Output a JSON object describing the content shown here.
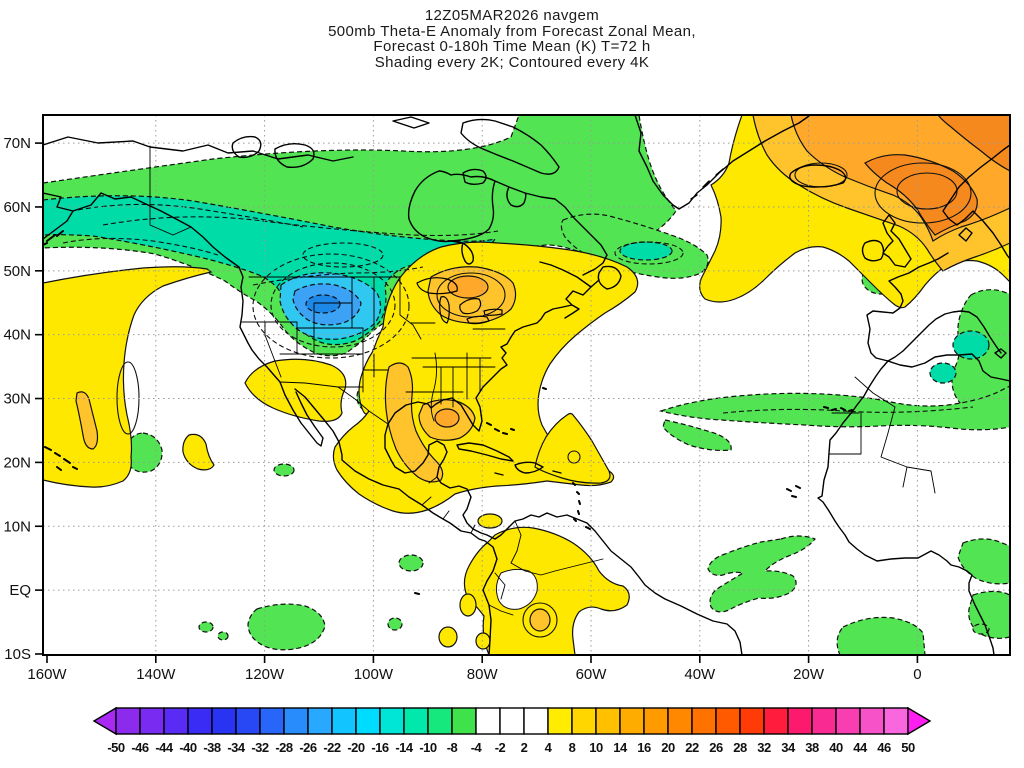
{
  "header": {
    "line1": "12Z05MAR2026 navgem",
    "line2": "500mb Theta-E Anomaly from Forecast Zonal Mean,",
    "line3": "Forecast 0-180h Time Mean (K) T=72 h",
    "line4": "Shading every 2K; Contoured every 4K"
  },
  "axes": {
    "lat": [
      {
        "label": "70N",
        "deg": 70
      },
      {
        "label": "60N",
        "deg": 60
      },
      {
        "label": "50N",
        "deg": 50
      },
      {
        "label": "40N",
        "deg": 40
      },
      {
        "label": "30N",
        "deg": 30
      },
      {
        "label": "20N",
        "deg": 20
      },
      {
        "label": "10N",
        "deg": 10
      },
      {
        "label": "EQ",
        "deg": 0
      },
      {
        "label": "10S",
        "deg": -10
      }
    ],
    "lon": [
      {
        "label": "160W",
        "deg": -160
      },
      {
        "label": "140W",
        "deg": -140
      },
      {
        "label": "120W",
        "deg": -120
      },
      {
        "label": "100W",
        "deg": -100
      },
      {
        "label": "80W",
        "deg": -80
      },
      {
        "label": "60W",
        "deg": -60
      },
      {
        "label": "40W",
        "deg": -40
      },
      {
        "label": "20W",
        "deg": -20
      },
      {
        "label": "0",
        "deg": 0
      }
    ]
  },
  "colorbar": {
    "labels": [
      "-50",
      "-46",
      "-44",
      "-40",
      "-38",
      "-34",
      "-32",
      "-28",
      "-26",
      "-22",
      "-20",
      "-16",
      "-14",
      "-10",
      "-8",
      "-4",
      "-2",
      "2",
      "4",
      "8",
      "10",
      "14",
      "16",
      "20",
      "22",
      "26",
      "28",
      "32",
      "34",
      "38",
      "40",
      "44",
      "46",
      "50"
    ],
    "cells": [
      "#8C2BEE",
      "#7A2BF2",
      "#5A2BF5",
      "#3A2BF5",
      "#2834F2",
      "#2848F5",
      "#2866FA",
      "#288CFD",
      "#28A8FF",
      "#12C4FF",
      "#00DCFF",
      "#00E6D6",
      "#00E8AC",
      "#16E87E",
      "#40E24C",
      "#FFFFFF",
      "#FFFFFF",
      "#FFFFFF",
      "#FFEC00",
      "#FFD600",
      "#FFC000",
      "#FFAC00",
      "#FF9A00",
      "#FF8800",
      "#FF7200",
      "#FF5A00",
      "#FF3C08",
      "#FF1C3C",
      "#FB1A6E",
      "#F92A92",
      "#F83EB0",
      "#F852C8",
      "#F966DE"
    ],
    "left_arrow": "#A82AF2",
    "right_arrow": "#FD1EEF"
  },
  "chart_data": {
    "type": "heatmap",
    "title": "12Z05MAR2026 navgem",
    "subtitle": [
      "500mb Theta-E Anomaly from Forecast Zonal Mean,",
      "Forecast 0-180h Time Mean (K) T=72 h",
      "Shading every 2K; Contoured every 4K"
    ],
    "projection": "equirectangular",
    "lon_range_deg": [
      -160,
      17
    ],
    "lat_range_deg": [
      -10,
      74
    ],
    "x_ticks": [
      "160W",
      "140W",
      "120W",
      "100W",
      "80W",
      "60W",
      "40W",
      "20W",
      "0"
    ],
    "y_ticks": [
      "70N",
      "60N",
      "50N",
      "40N",
      "30N",
      "20N",
      "10N",
      "EQ",
      "10S"
    ],
    "units": "K",
    "shading_interval_K": 2,
    "contour_interval_K": 4,
    "contour_style": {
      "negative": "dashed",
      "positive": "solid"
    },
    "grid": "dotted gray every labeled tick",
    "colorbar_values": [
      -50,
      -46,
      -44,
      -40,
      -38,
      -34,
      -32,
      -28,
      -26,
      -22,
      -20,
      -16,
      -14,
      -10,
      -8,
      -4,
      -2,
      2,
      4,
      8,
      10,
      14,
      16,
      20,
      22,
      26,
      28,
      32,
      34,
      38,
      40,
      44,
      46,
      50
    ],
    "anomaly_features": [
      {
        "sign": "negative",
        "region": "Alaska and western-central Canada broad band",
        "approx_center": "55N 120W",
        "approx_min_K": -18,
        "note": "cold core over US northern Rockies (Montana/Wyoming ~45N 108W), blue shading"
      },
      {
        "sign": "negative",
        "region": "Atlantic east of Newfoundland / south of Greenland",
        "approx_center": "52N 45W",
        "approx_min_K": -10
      },
      {
        "sign": "positive",
        "region": "Eastern United States and Great Lakes",
        "approx_center": "40N 85W",
        "approx_max_K": 14
      },
      {
        "sign": "positive",
        "region": "Northeast Atlantic / Iceland / Scandinavia",
        "approx_center": "62N 3E",
        "approx_max_K": 18
      },
      {
        "sign": "positive",
        "region": "Northeast Pacific along 160-150W",
        "approx_center": "33N 155W",
        "approx_max_K": 10
      },
      {
        "sign": "positive",
        "region": "Baja California / northwest Mexico",
        "approx_center": "28N 110W",
        "approx_max_K": 6
      },
      {
        "sign": "positive",
        "region": "Caribbean, Cuba-Hispaniola and subtropical west Atlantic",
        "approx_center": "22N 70W",
        "approx_max_K": 8
      },
      {
        "sign": "positive",
        "region": "Northern South America (Colombia/Venezuela/NW Brazil)",
        "approx_center": "3N 67W",
        "approx_max_K": 10
      },
      {
        "sign": "negative",
        "region": "Subtropical Atlantic band into northwest Africa",
        "approx_center": "28N 25W",
        "approx_min_K": -6
      },
      {
        "sign": "negative",
        "region": "Western Mediterranean / Iberia edge",
        "approx_center": "37N 3E",
        "approx_min_K": -8
      },
      {
        "sign": "negative",
        "region": "Scattered equatorial patches (east Pacific, Gulf of Guinea, equatorial Atlantic)",
        "approx_min_K": -6
      }
    ]
  }
}
